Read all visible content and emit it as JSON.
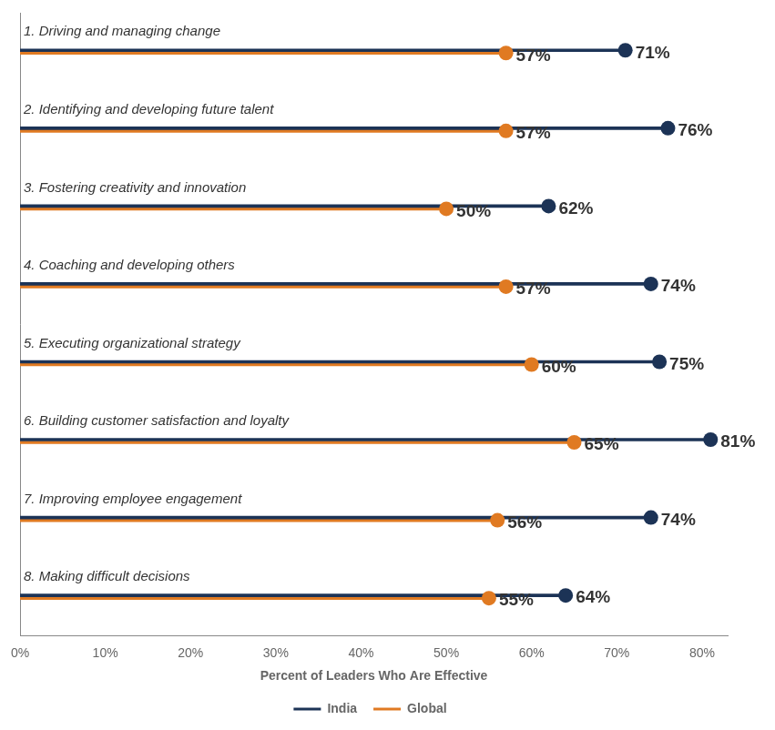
{
  "chart_data": {
    "type": "bar",
    "orientation": "horizontal",
    "categories": [
      "1. Driving and managing change",
      "2. Identifying and developing future talent",
      "3. Fostering creativity and innovation",
      "4. Coaching and developing others",
      "5. Executing organizational strategy",
      "6. Building customer satisfaction and loyalty",
      "7. Improving employee engagement",
      "8. Making difficult decisions"
    ],
    "series": [
      {
        "name": "India",
        "color": "#1c3356",
        "values": [
          71,
          76,
          62,
          74,
          75,
          81,
          74,
          64
        ],
        "value_labels": [
          "71%",
          "76%",
          "62%",
          "74%",
          "75%",
          "81%",
          "74%",
          "64%"
        ]
      },
      {
        "name": "Global",
        "color": "#e07a22",
        "values": [
          57,
          57,
          50,
          57,
          60,
          65,
          56,
          55
        ],
        "value_labels": [
          "57%",
          "57%",
          "50%",
          "57%",
          "60%",
          "65%",
          "56%",
          "55%"
        ]
      }
    ],
    "x_label": "Percent of Leaders Who Are Effective",
    "xlim": [
      0,
      83
    ],
    "xticks": [
      {
        "value": 0,
        "label": "0%"
      },
      {
        "value": 10,
        "label": "10%"
      },
      {
        "value": 20,
        "label": "20%"
      },
      {
        "value": 30,
        "label": "30%"
      },
      {
        "value": 40,
        "label": "40%"
      },
      {
        "value": 50,
        "label": "50%"
      },
      {
        "value": 60,
        "label": "60%"
      },
      {
        "value": 70,
        "label": "70%"
      },
      {
        "value": 80,
        "label": "80%"
      }
    ],
    "grid": false,
    "legend": "bottom",
    "data_labels": true,
    "marker": "circle"
  }
}
